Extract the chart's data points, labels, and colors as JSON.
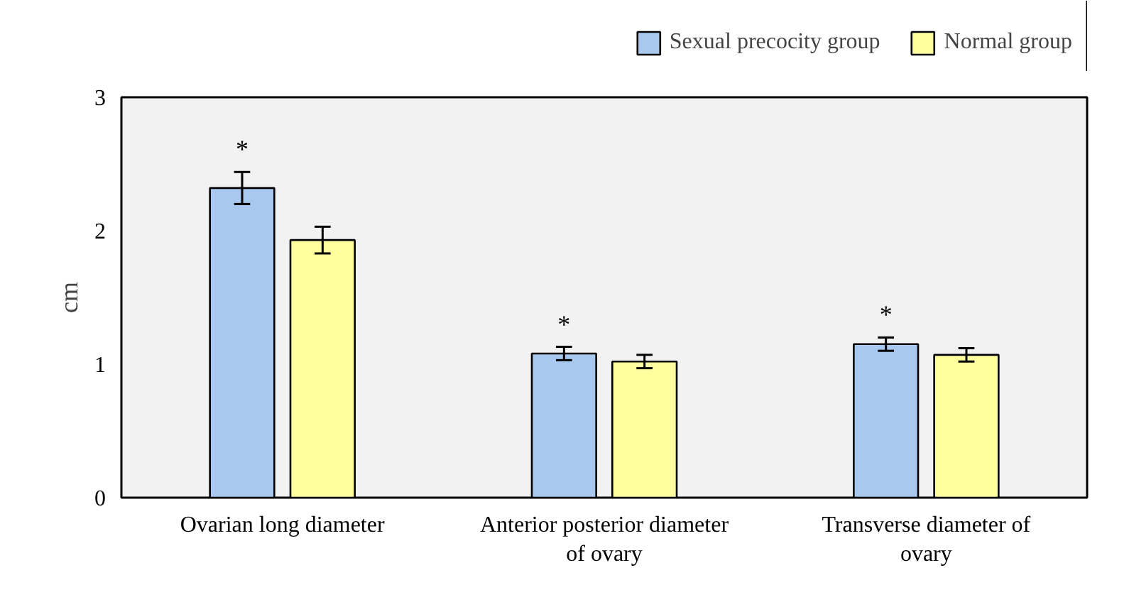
{
  "chart_data": {
    "type": "bar",
    "ylabel": "cm",
    "categories": [
      "Ovarian long diameter",
      "Anterior posterior diameter\nof ovary",
      "Transverse diameter of\novary"
    ],
    "series": [
      {
        "name": "Sexual precocity group",
        "color": "#a9c8f0",
        "values": [
          2.32,
          1.08,
          1.15
        ],
        "errors": [
          0.12,
          0.05,
          0.05
        ]
      },
      {
        "name": "Normal group",
        "color": "#ffffa0",
        "values": [
          1.93,
          1.02,
          1.07
        ],
        "errors": [
          0.1,
          0.05,
          0.05
        ]
      }
    ],
    "ylim": [
      0,
      3
    ],
    "yticks": [
      0,
      1,
      2,
      3
    ],
    "grid": false,
    "legend": "top right",
    "annotations": [
      "*",
      "*",
      "*"
    ]
  }
}
